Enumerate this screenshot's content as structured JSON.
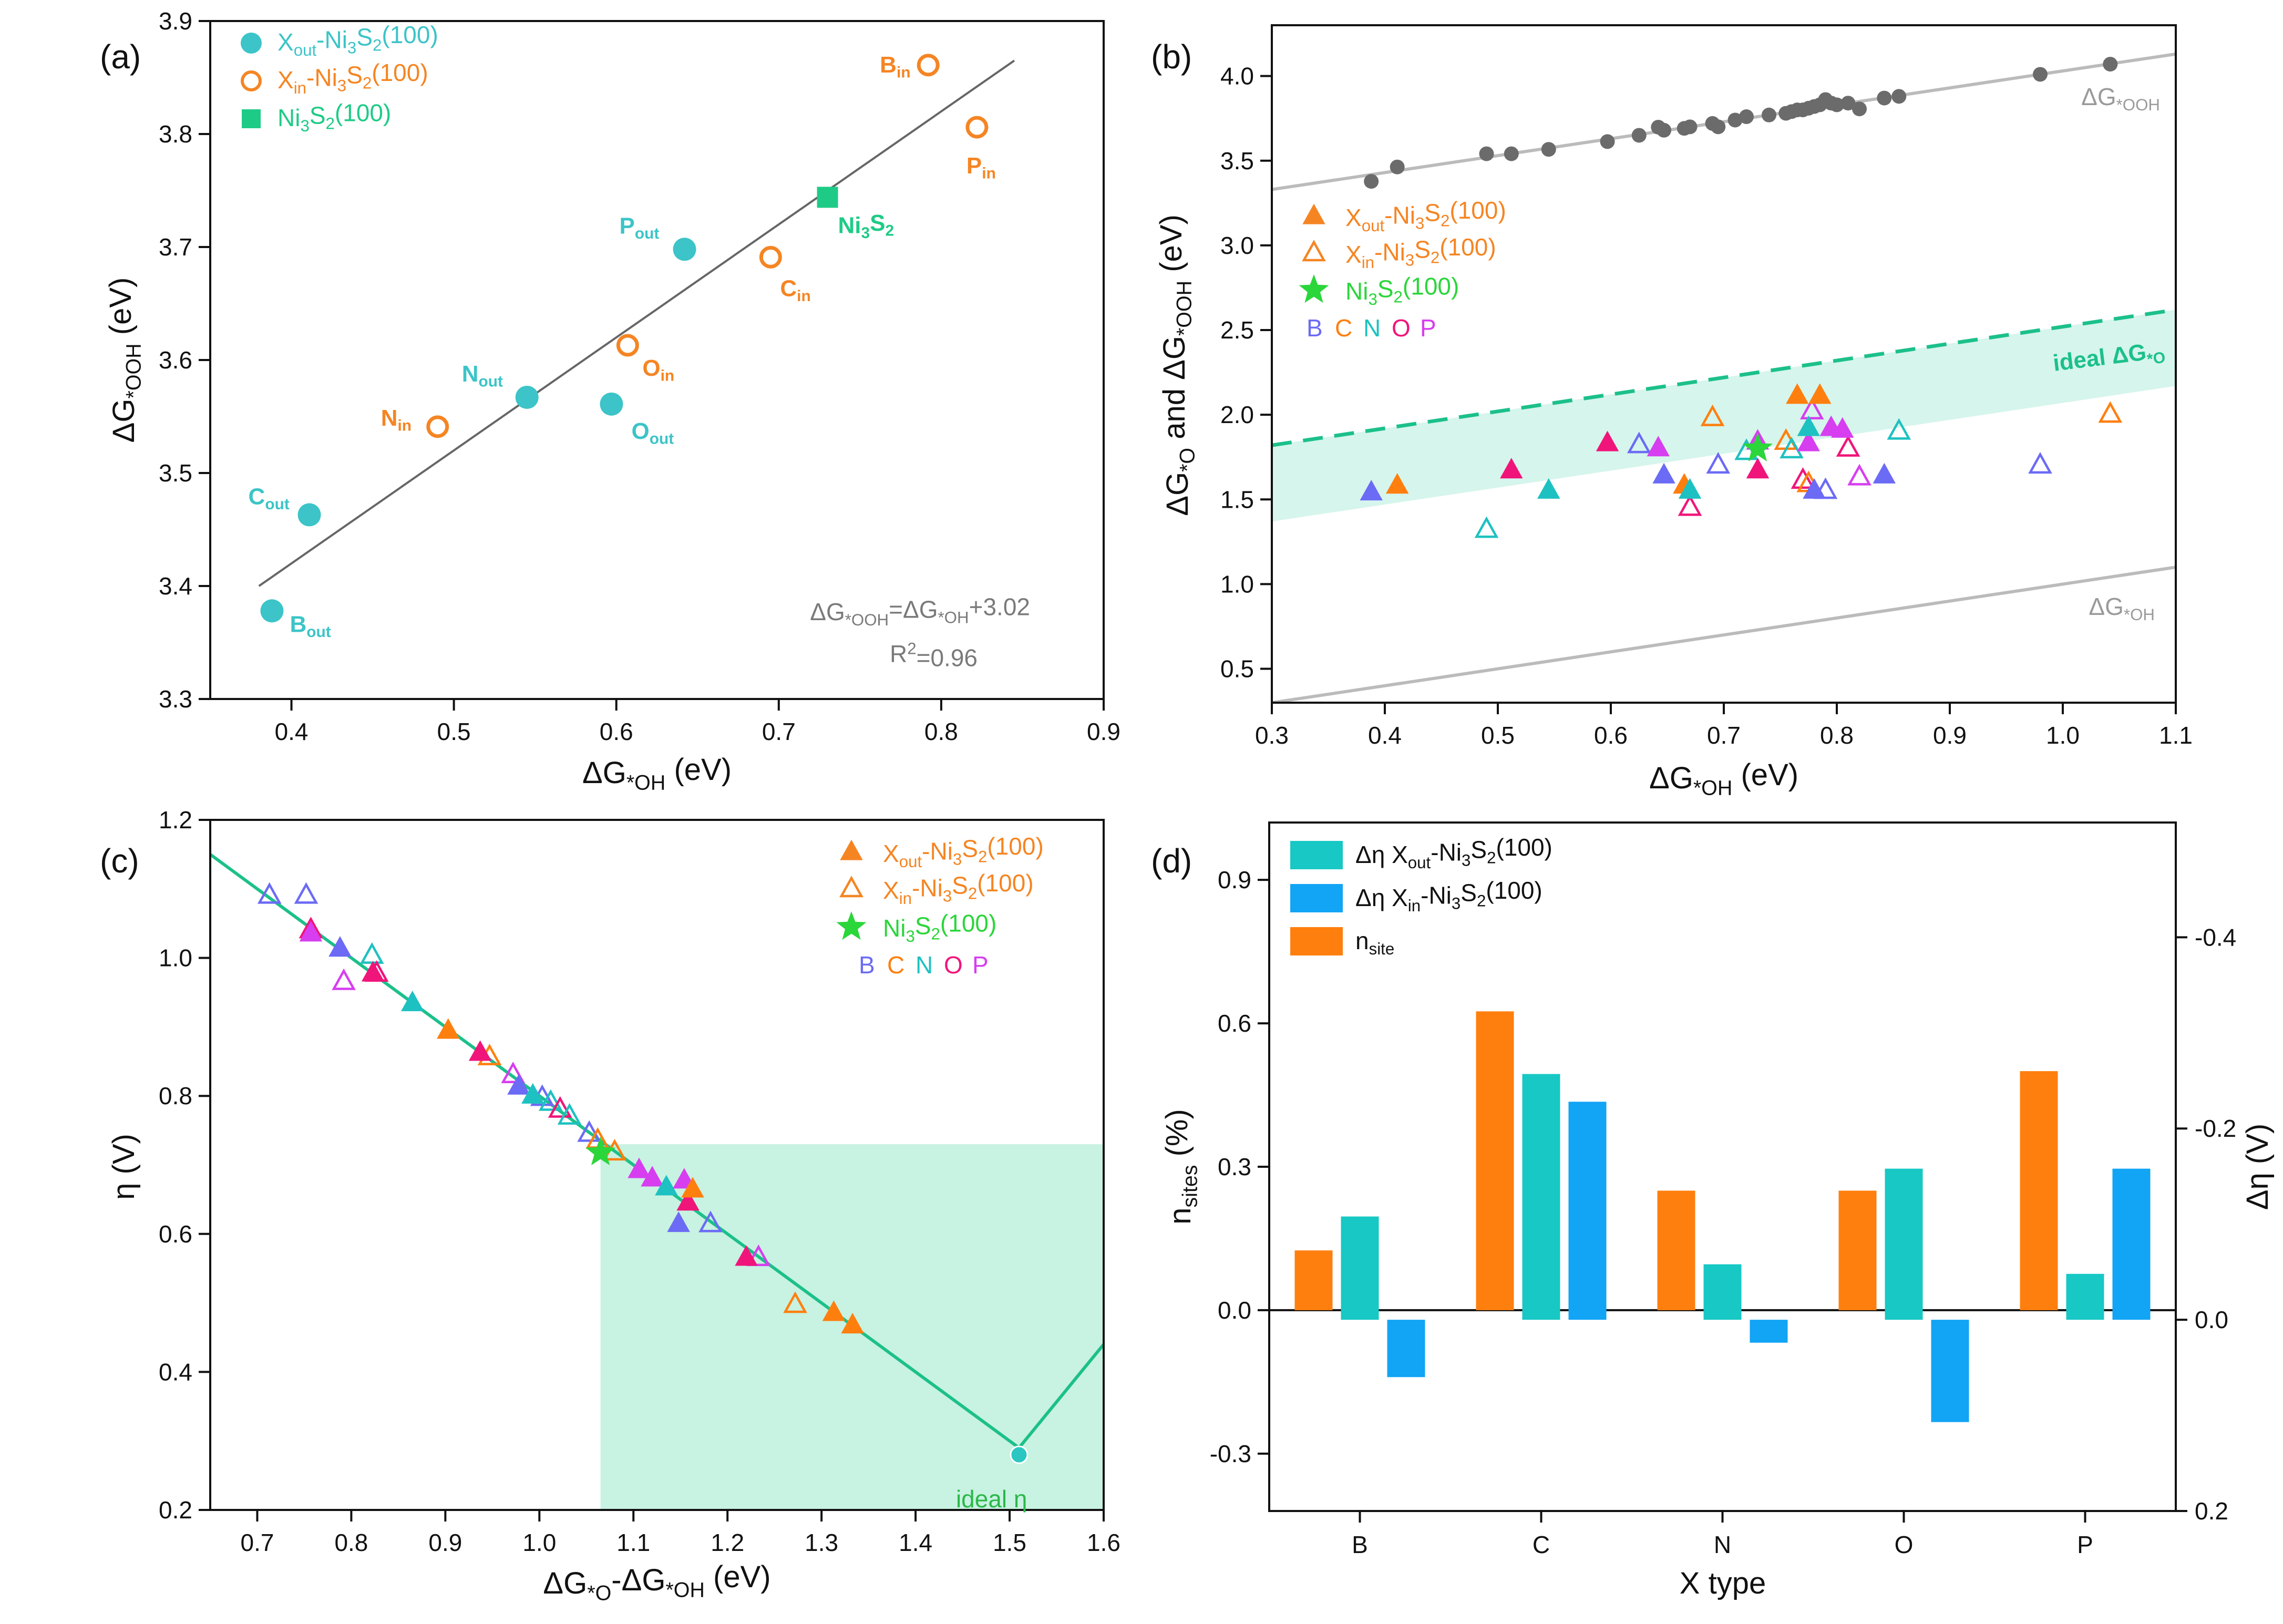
{
  "chart_data": [
    {
      "panel": "(a)",
      "type": "scatter",
      "xlabel": "ΔG*OH (eV)",
      "ylabel": "ΔG*OOH (eV)",
      "xlim": [
        0.35,
        0.9
      ],
      "ylim": [
        3.3,
        3.9
      ],
      "xticks": [
        0.4,
        0.5,
        0.6,
        0.7,
        0.8,
        0.9
      ],
      "yticks": [
        3.3,
        3.4,
        3.5,
        3.6,
        3.7,
        3.8,
        3.9
      ],
      "colors": {
        "out": "#3cc4c8",
        "in": "#f58523",
        "ni": "#1ecb86",
        "fit": "#666666"
      },
      "legend": [
        {
          "label_main": "X",
          "label_sub": "out",
          "label_rest": "-Ni",
          "label_sub2": "3",
          "label_rest2": "S",
          "label_sub3": "2",
          "label_tail": "(100)",
          "marker": "circle-filled"
        },
        {
          "label_main": "X",
          "label_sub": "in",
          "label_rest": "-Ni",
          "label_sub2": "3",
          "label_rest2": "S",
          "label_sub3": "2",
          "label_tail": "(100)",
          "marker": "circle-open"
        },
        {
          "label_main": "Ni",
          "label_sub": "3",
          "label_rest": "S",
          "label_sub2": "2",
          "label_rest2": "(100)",
          "marker": "square-filled"
        }
      ],
      "points": [
        {
          "group": "out",
          "x": 0.388,
          "y": 3.378,
          "label": "B",
          "sub": "out"
        },
        {
          "group": "out",
          "x": 0.411,
          "y": 3.463,
          "label": "C",
          "sub": "out"
        },
        {
          "group": "out",
          "x": 0.545,
          "y": 3.567,
          "label": "N",
          "sub": "out"
        },
        {
          "group": "out",
          "x": 0.597,
          "y": 3.561,
          "label": "O",
          "sub": "out"
        },
        {
          "group": "out",
          "x": 0.642,
          "y": 3.698,
          "label": "P",
          "sub": "out"
        },
        {
          "group": "in",
          "x": 0.49,
          "y": 3.541,
          "label": "N",
          "sub": "in"
        },
        {
          "group": "in",
          "x": 0.607,
          "y": 3.613,
          "label": "O",
          "sub": "in"
        },
        {
          "group": "in",
          "x": 0.695,
          "y": 3.691,
          "label": "C",
          "sub": "in"
        },
        {
          "group": "in",
          "x": 0.792,
          "y": 3.861,
          "label": "B",
          "sub": "in"
        },
        {
          "group": "in",
          "x": 0.822,
          "y": 3.806,
          "label": "P",
          "sub": "in"
        },
        {
          "group": "ni",
          "x": 0.73,
          "y": 3.744,
          "label": "Ni",
          "sub": "3",
          "label2": "S",
          "sub2": "2"
        }
      ],
      "fit": {
        "x": [
          0.38,
          0.845
        ],
        "y": [
          3.4,
          3.865
        ]
      },
      "equation": "ΔG*OOH=ΔG*OH+3.02",
      "r2_label": "R",
      "r2_sup": "2",
      "r2_value": "=0.96"
    },
    {
      "panel": "(b)",
      "type": "scatter",
      "xlabel": "ΔG*OH (eV)",
      "ylabel": "ΔG*O and ΔG*OOH (eV)",
      "xlim": [
        0.3,
        1.1
      ],
      "ylim": [
        0.3,
        4.3
      ],
      "xticks": [
        0.3,
        0.4,
        0.5,
        0.6,
        0.7,
        0.8,
        0.9,
        1.0,
        1.1
      ],
      "yticks": [
        0.5,
        1.0,
        1.5,
        2.0,
        2.5,
        3.0,
        3.5,
        4.0
      ],
      "lines": [
        {
          "name": "ΔG*OOH",
          "x": [
            0.3,
            1.1
          ],
          "y": [
            3.33,
            4.13
          ],
          "color": "#bbbbbb"
        },
        {
          "name": "ΔG*OH",
          "x": [
            0.3,
            1.1
          ],
          "y": [
            0.3,
            1.1
          ],
          "color": "#bbbbbb"
        },
        {
          "name": "ideal ΔG*O",
          "x": [
            0.3,
            1.1
          ],
          "y": [
            1.82,
            2.62
          ],
          "color": "#1cc08a",
          "dashed": true
        }
      ],
      "band": {
        "x": [
          0.3,
          1.1
        ],
        "lower": [
          1.37,
          2.17
        ],
        "upper": [
          1.82,
          2.62
        ],
        "color": "#d6f5ec"
      },
      "ooh_points_x": [
        0.388,
        0.411,
        0.49,
        0.512,
        0.545,
        0.597,
        0.625,
        0.642,
        0.647,
        0.665,
        0.67,
        0.69,
        0.695,
        0.71,
        0.72,
        0.74,
        0.755,
        0.76,
        0.765,
        0.77,
        0.775,
        0.78,
        0.785,
        0.79,
        0.795,
        0.8,
        0.81,
        0.82,
        0.842,
        0.855,
        0.98,
        1.042
      ],
      "ooh_points_y": [
        3.378,
        3.463,
        3.541,
        3.541,
        3.567,
        3.613,
        3.65,
        3.698,
        3.68,
        3.691,
        3.7,
        3.72,
        3.7,
        3.74,
        3.76,
        3.77,
        3.78,
        3.79,
        3.8,
        3.8,
        3.81,
        3.82,
        3.83,
        3.861,
        3.84,
        3.83,
        3.84,
        3.806,
        3.87,
        3.88,
        4.01,
        4.07
      ],
      "filled": [
        {
          "x": 0.388,
          "y": 1.54,
          "c": "B"
        },
        {
          "x": 0.411,
          "y": 1.58,
          "c": "C"
        },
        {
          "x": 0.512,
          "y": 1.67,
          "c": "O"
        },
        {
          "x": 0.545,
          "y": 1.55,
          "c": "N"
        },
        {
          "x": 0.597,
          "y": 1.83,
          "c": "O"
        },
        {
          "x": 0.642,
          "y": 1.8,
          "c": "P"
        },
        {
          "x": 0.647,
          "y": 1.64,
          "c": "B"
        },
        {
          "x": 0.665,
          "y": 1.58,
          "c": "C"
        },
        {
          "x": 0.67,
          "y": 1.55,
          "c": "N"
        },
        {
          "x": 0.73,
          "y": 1.67,
          "c": "O"
        },
        {
          "x": 0.765,
          "y": 2.11,
          "c": "C"
        },
        {
          "x": 0.775,
          "y": 1.83,
          "c": "P"
        },
        {
          "x": 0.785,
          "y": 2.11,
          "c": "C"
        },
        {
          "x": 0.795,
          "y": 1.92,
          "c": "P"
        },
        {
          "x": 0.775,
          "y": 1.92,
          "c": "N"
        },
        {
          "x": 0.78,
          "y": 1.55,
          "c": "B"
        },
        {
          "x": 0.805,
          "y": 1.91,
          "c": "P"
        },
        {
          "x": 0.842,
          "y": 1.64,
          "c": "B"
        },
        {
          "x": 0.73,
          "y": 1.84,
          "c": "P"
        }
      ],
      "open": [
        {
          "x": 0.49,
          "y": 1.32,
          "c": "N"
        },
        {
          "x": 0.625,
          "y": 1.82,
          "c": "B"
        },
        {
          "x": 0.67,
          "y": 1.45,
          "c": "O"
        },
        {
          "x": 0.69,
          "y": 1.98,
          "c": "C"
        },
        {
          "x": 0.695,
          "y": 1.7,
          "c": "B"
        },
        {
          "x": 0.72,
          "y": 1.78,
          "c": "N"
        },
        {
          "x": 0.755,
          "y": 1.84,
          "c": "C"
        },
        {
          "x": 0.76,
          "y": 1.79,
          "c": "N"
        },
        {
          "x": 0.77,
          "y": 1.61,
          "c": "O"
        },
        {
          "x": 0.775,
          "y": 1.59,
          "c": "C"
        },
        {
          "x": 0.778,
          "y": 2.02,
          "c": "P"
        },
        {
          "x": 0.79,
          "y": 1.55,
          "c": "B"
        },
        {
          "x": 0.81,
          "y": 1.8,
          "c": "O"
        },
        {
          "x": 0.82,
          "y": 1.63,
          "c": "P"
        },
        {
          "x": 0.855,
          "y": 1.9,
          "c": "N"
        },
        {
          "x": 0.98,
          "y": 1.7,
          "c": "B"
        },
        {
          "x": 1.042,
          "y": 2.0,
          "c": "C"
        }
      ],
      "star": {
        "x": 0.73,
        "y": 1.8
      },
      "line_labels": {
        "ooh": "ΔG*OOH",
        "oh": "ΔG*OH",
        "ideal": "ideal ΔG*O"
      },
      "legend_letters": [
        "B",
        "C",
        "N",
        "O",
        "P"
      ]
    },
    {
      "panel": "(c)",
      "type": "scatter",
      "xlabel": "ΔG*O-ΔG*OH (eV)",
      "ylabel": "η (V)",
      "xlim": [
        0.65,
        1.6
      ],
      "ylim": [
        0.2,
        1.2
      ],
      "xticks": [
        0.7,
        0.8,
        0.9,
        1.0,
        1.1,
        1.2,
        1.3,
        1.4,
        1.5,
        1.6
      ],
      "yticks": [
        0.2,
        0.4,
        0.6,
        0.8,
        1.0,
        1.2
      ],
      "volcano": {
        "x": [
          0.65,
          1.51,
          1.6
        ],
        "y": [
          1.15,
          0.29,
          0.44
        ],
        "color": "#1cc08a"
      },
      "region": {
        "x": [
          1.065,
          1.6
        ],
        "y": [
          0.2,
          0.73
        ],
        "color": "#c8f2e1"
      },
      "ideal_point": {
        "x": 1.51,
        "y": 0.28,
        "label": "ideal η"
      },
      "filled": [
        {
          "x": 0.757,
          "y": 1.035,
          "c": "P"
        },
        {
          "x": 0.788,
          "y": 1.013,
          "c": "B"
        },
        {
          "x": 0.823,
          "y": 0.977,
          "c": "O"
        },
        {
          "x": 0.865,
          "y": 0.934,
          "c": "N"
        },
        {
          "x": 0.903,
          "y": 0.894,
          "c": "C"
        },
        {
          "x": 0.937,
          "y": 0.862,
          "c": "O"
        },
        {
          "x": 0.978,
          "y": 0.813,
          "c": "B"
        },
        {
          "x": 0.993,
          "y": 0.8,
          "c": "N"
        },
        {
          "x": 1.106,
          "y": 0.692,
          "c": "P"
        },
        {
          "x": 1.12,
          "y": 0.68,
          "c": "P"
        },
        {
          "x": 1.135,
          "y": 0.667,
          "c": "N"
        },
        {
          "x": 1.148,
          "y": 0.614,
          "c": "B"
        },
        {
          "x": 1.154,
          "y": 0.677,
          "c": "P"
        },
        {
          "x": 1.158,
          "y": 0.645,
          "c": "O"
        },
        {
          "x": 1.163,
          "y": 0.664,
          "c": "C"
        },
        {
          "x": 1.22,
          "y": 0.565,
          "c": "O"
        },
        {
          "x": 1.313,
          "y": 0.485,
          "c": "C"
        },
        {
          "x": 1.333,
          "y": 0.467,
          "c": "C"
        }
      ],
      "open": [
        {
          "x": 0.713,
          "y": 1.09,
          "c": "B"
        },
        {
          "x": 0.752,
          "y": 1.09,
          "c": "B"
        },
        {
          "x": 0.757,
          "y": 1.04,
          "c": "O"
        },
        {
          "x": 0.792,
          "y": 0.965,
          "c": "P"
        },
        {
          "x": 0.822,
          "y": 1.003,
          "c": "N"
        },
        {
          "x": 0.827,
          "y": 0.977,
          "c": "O"
        },
        {
          "x": 0.947,
          "y": 0.856,
          "c": "C"
        },
        {
          "x": 0.972,
          "y": 0.83,
          "c": "P"
        },
        {
          "x": 1.003,
          "y": 0.797,
          "c": "B"
        },
        {
          "x": 1.012,
          "y": 0.79,
          "c": "N"
        },
        {
          "x": 1.022,
          "y": 0.78,
          "c": "O"
        },
        {
          "x": 1.032,
          "y": 0.77,
          "c": "N"
        },
        {
          "x": 1.053,
          "y": 0.745,
          "c": "B"
        },
        {
          "x": 1.062,
          "y": 0.735,
          "c": "C"
        },
        {
          "x": 1.08,
          "y": 0.718,
          "c": "C"
        },
        {
          "x": 1.182,
          "y": 0.614,
          "c": "B"
        },
        {
          "x": 1.233,
          "y": 0.565,
          "c": "P"
        },
        {
          "x": 1.272,
          "y": 0.497,
          "c": "C"
        }
      ],
      "star": {
        "x": 1.065,
        "y": 0.718
      },
      "legend_letters": [
        "B",
        "C",
        "N",
        "O",
        "P"
      ]
    },
    {
      "panel": "(d)",
      "type": "bar",
      "xlabel": "X type",
      "ylabel": "nsites (%)",
      "ylabel_right": "Δη (V)",
      "categories": [
        "B",
        "C",
        "N",
        "O",
        "P"
      ],
      "left_ylim": [
        -0.42,
        1.02
      ],
      "left_yticks": [
        -0.3,
        0.0,
        0.3,
        0.6,
        0.9
      ],
      "right_ylim": [
        0.2,
        -0.52
      ],
      "right_yticks": [
        0.2,
        0.0,
        -0.2,
        -0.4
      ],
      "series": [
        {
          "name": "n_site",
          "axis": "left",
          "color": "#ff7f0e",
          "values": [
            0.125,
            0.625,
            0.25,
            0.25,
            0.5
          ]
        },
        {
          "name": "Δη X_out",
          "axis": "right",
          "color": "#17c8c4",
          "values": [
            -0.108,
            -0.257,
            -0.058,
            -0.158,
            -0.048
          ]
        },
        {
          "name": "Δη X_in",
          "axis": "right",
          "color": "#12a4f5",
          "values": [
            0.06,
            -0.228,
            0.024,
            0.107,
            -0.158
          ]
        }
      ],
      "legend": [
        {
          "pre": "Δη X",
          "sub": "out",
          "mid": "-Ni",
          "sub2": "3",
          "mid2": "S",
          "sub3": "2",
          "tail": "(100)",
          "color": "#17c8c4"
        },
        {
          "pre": "Δη  X",
          "sub": "in",
          "mid": "-Ni",
          "sub2": "3",
          "mid2": "S",
          "sub3": "2",
          "tail": "(100)",
          "color": "#12a4f5"
        },
        {
          "pre": "n",
          "sub": "site",
          "color": "#ff7f0e"
        }
      ]
    }
  ],
  "palette": {
    "B": "#6b6bf5",
    "C": "#ff7f0e",
    "N": "#1ec1c1",
    "O": "#f0157a",
    "P": "#d63ef0"
  },
  "labels": {
    "a_panel": "(a)",
    "b_panel": "(b)",
    "c_panel": "(c)",
    "d_panel": "(d)",
    "xout_leg": "X",
    "xout_sub": "out",
    "xin_sub": "in",
    "ni": "Ni",
    "three": "3",
    "s": "S",
    "two": "2",
    "hundred": "(100)",
    "dash": "-"
  }
}
